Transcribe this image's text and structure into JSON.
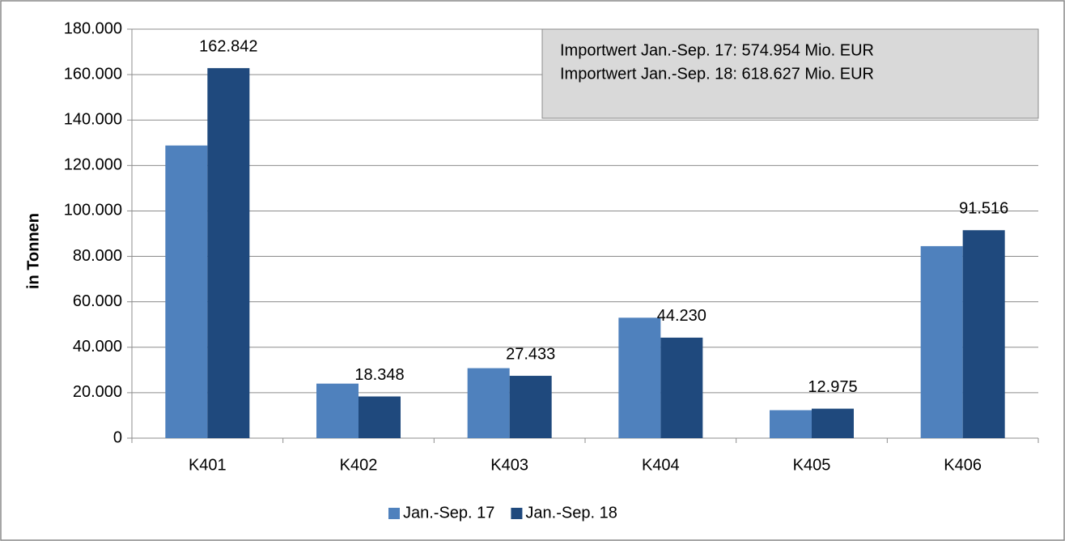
{
  "chart_data": {
    "type": "bar",
    "y_axis_label": "in Tonnen",
    "annotation": [
      "Importwert Jan.-Sep. 17: 574.954 Mio. EUR",
      "Importwert Jan.-Sep. 18: 618.627 Mio. EUR"
    ],
    "categories": [
      "K401",
      "K402",
      "K403",
      "K404",
      "K405",
      "K406"
    ],
    "series": [
      {
        "name": "Jan.-Sep. 17",
        "color": "#4f81bd",
        "values": [
          128800,
          24000,
          30800,
          53000,
          12300,
          84500
        ]
      },
      {
        "name": "Jan.-Sep. 18",
        "color": "#1f497d",
        "values": [
          162842,
          18348,
          27433,
          44230,
          12975,
          91516
        ],
        "value_labels": [
          "162.842",
          "18.348",
          "27.433",
          "44.230",
          "12.975",
          "91.516"
        ]
      }
    ],
    "ylim": [
      0,
      180000
    ],
    "yticks": [
      0,
      {
        "value": 20000,
        "label": "20.000"
      },
      {
        "value": 40000,
        "label": "40.000"
      },
      {
        "value": 60000,
        "label": "60.000"
      },
      {
        "value": 80000,
        "label": "80.000"
      },
      {
        "value": 100000,
        "label": "100.000"
      },
      {
        "value": 120000,
        "label": "120.000"
      },
      {
        "value": 140000,
        "label": "140.000"
      },
      {
        "value": 160000,
        "label": "160.000"
      },
      {
        "value": 180000,
        "label": "180.000"
      }
    ],
    "grid": true,
    "legend": "bottom"
  }
}
